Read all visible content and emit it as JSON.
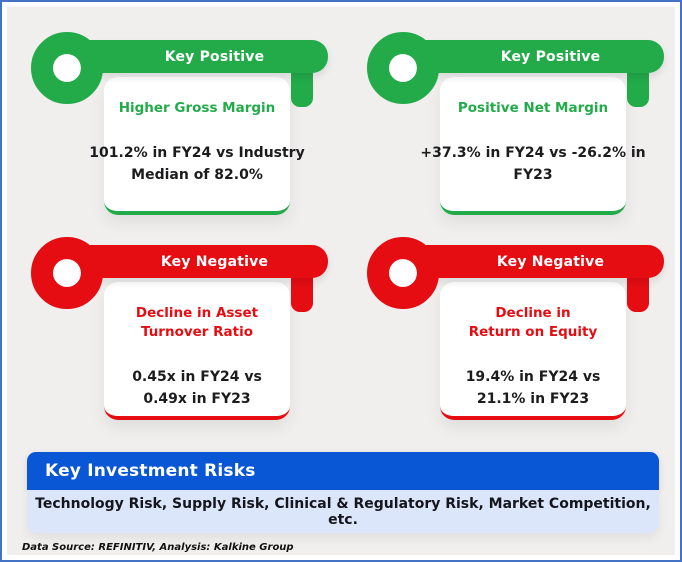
{
  "colors": {
    "positive": "#23ab4a",
    "negative": "#e50c12",
    "banner-blue": "#0a57d5",
    "banner-light": "#dce6fb",
    "background": "#f0efee",
    "frame-border": "#4472c4",
    "ink": "#1c1c1e"
  },
  "cards": [
    {
      "type": "positive",
      "key_label": "Key Positive",
      "title": "Higher Gross Margin",
      "detail": "101.2% in FY24 vs Industry\nMedian of 82.0%"
    },
    {
      "type": "positive",
      "key_label": "Key Positive",
      "title": "Positive Net Margin",
      "detail": "+37.3% in FY24 vs -26.2% in\nFY23"
    },
    {
      "type": "negative",
      "key_label": "Key Negative",
      "title": "Decline in Asset\nTurnover Ratio",
      "detail": "0.45x in FY24 vs\n0.49x in FY23"
    },
    {
      "type": "negative",
      "key_label": "Key Negative",
      "title": "Decline in\nReturn on Equity",
      "detail": "19.4% in FY24 vs\n21.1% in FY23"
    }
  ],
  "risks": {
    "title": "Key Investment Risks",
    "items": "Technology Risk, Supply Risk, Clinical & Regulatory Risk, Market Competition, etc."
  },
  "footer": {
    "source": "Data Source: REFINITIV, Analysis: Kalkine Group"
  }
}
